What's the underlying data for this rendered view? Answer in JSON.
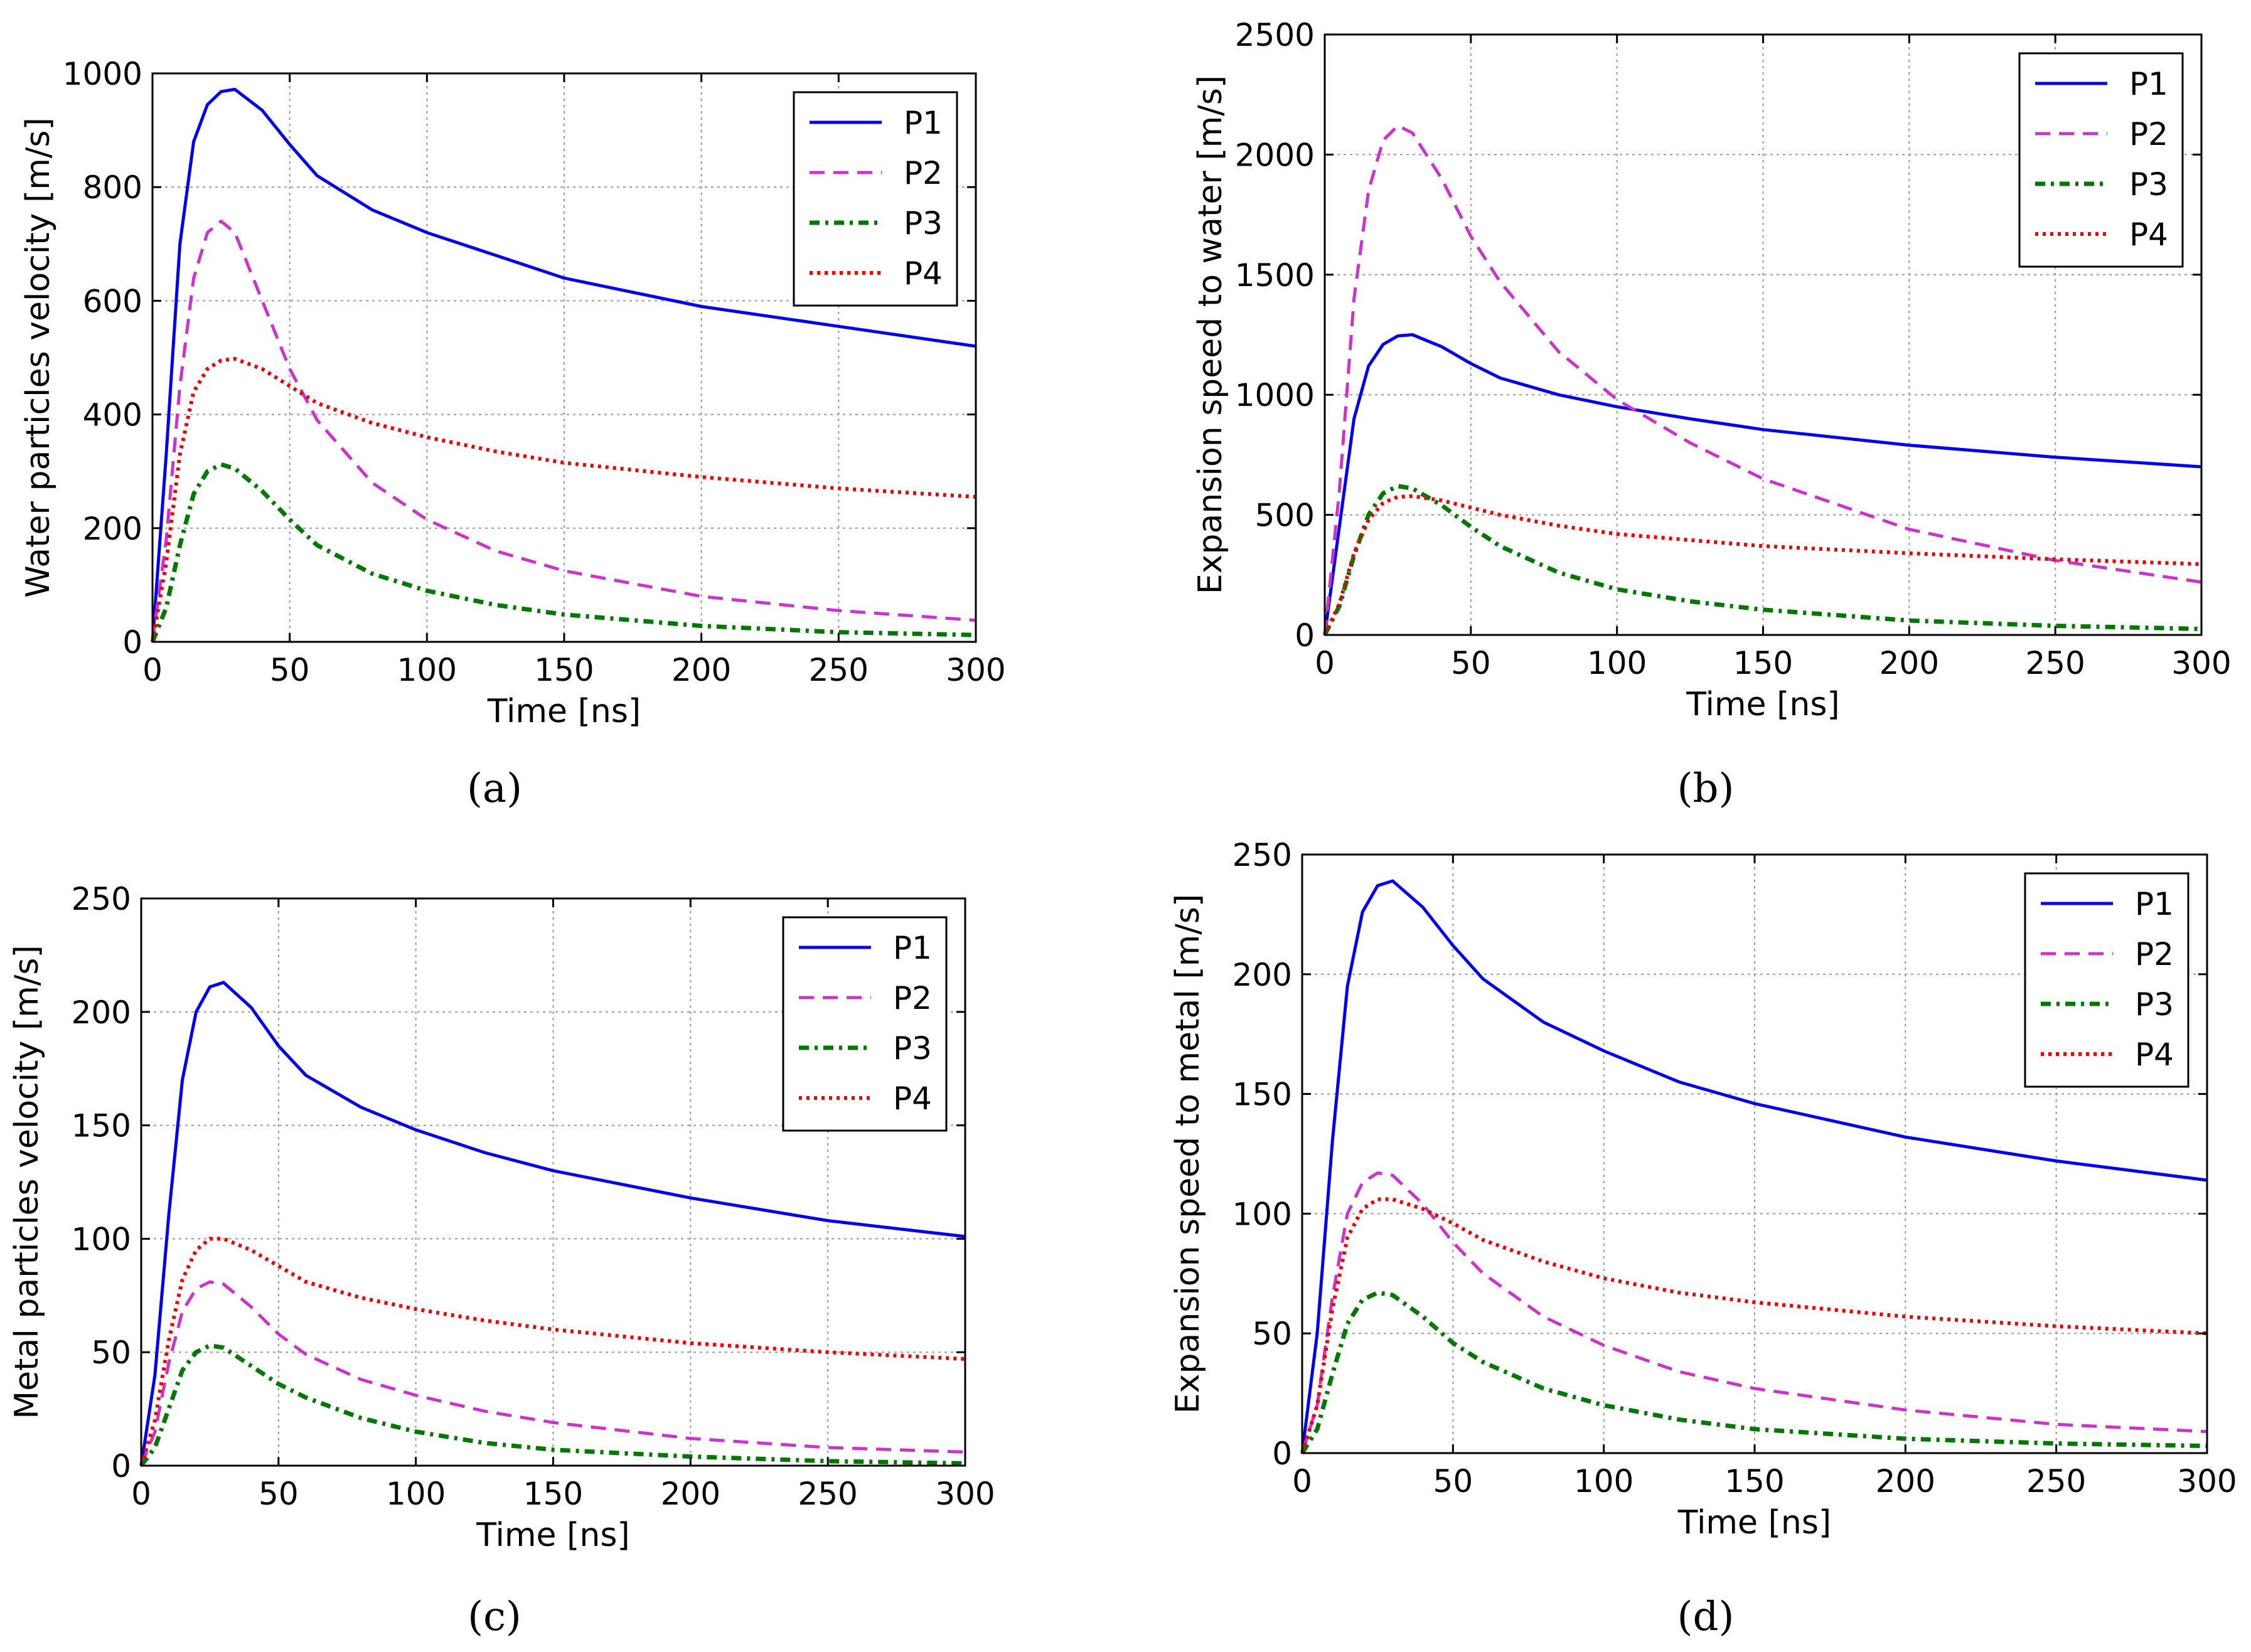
{
  "figure_labels": [
    "(a)",
    "(b)",
    "(c)",
    "(d)"
  ],
  "chart_data": [
    {
      "id": "a",
      "type": "line",
      "title": "",
      "caption": "(a)",
      "xlabel": "Time [ns]",
      "ylabel": "Water particles velocity [m/s]",
      "xlim": [
        0,
        300
      ],
      "ylim": [
        0,
        1000
      ],
      "xticks": [
        0,
        50,
        100,
        150,
        200,
        250,
        300
      ],
      "yticks": [
        0,
        200,
        400,
        600,
        800,
        1000
      ],
      "grid": true,
      "legend_position": "top-right",
      "series": [
        {
          "name": "P1",
          "style": "solid",
          "color": "#0000ee",
          "x": [
            0,
            5,
            10,
            15,
            20,
            25,
            30,
            40,
            50,
            60,
            80,
            100,
            125,
            150,
            200,
            250,
            300
          ],
          "y": [
            0,
            330,
            700,
            880,
            945,
            968,
            972,
            935,
            875,
            820,
            760,
            720,
            680,
            640,
            590,
            555,
            520
          ]
        },
        {
          "name": "P2",
          "style": "dashed",
          "color": "#cc33cc",
          "x": [
            0,
            5,
            10,
            15,
            20,
            25,
            30,
            40,
            50,
            60,
            80,
            100,
            125,
            150,
            200,
            250,
            300
          ],
          "y": [
            0,
            180,
            450,
            640,
            720,
            740,
            720,
            600,
            480,
            390,
            280,
            215,
            160,
            125,
            80,
            55,
            38
          ]
        },
        {
          "name": "P3",
          "style": "dashdot",
          "color": "#007700",
          "x": [
            0,
            5,
            10,
            15,
            20,
            25,
            30,
            40,
            50,
            60,
            80,
            100,
            125,
            150,
            200,
            250,
            300
          ],
          "y": [
            0,
            60,
            170,
            260,
            300,
            312,
            305,
            265,
            215,
            170,
            120,
            90,
            65,
            48,
            28,
            17,
            12
          ]
        },
        {
          "name": "P4",
          "style": "dotted",
          "color": "#ee0000",
          "x": [
            0,
            5,
            10,
            15,
            20,
            25,
            30,
            40,
            50,
            60,
            80,
            100,
            125,
            150,
            200,
            250,
            300
          ],
          "y": [
            0,
            140,
            330,
            440,
            480,
            495,
            498,
            480,
            450,
            420,
            385,
            360,
            335,
            315,
            290,
            270,
            255
          ]
        }
      ]
    },
    {
      "id": "b",
      "type": "line",
      "title": "",
      "caption": "(b)",
      "xlabel": "Time [ns]",
      "ylabel": "Expansion speed to water [m/s]",
      "xlim": [
        0,
        300
      ],
      "ylim": [
        0,
        2500
      ],
      "xticks": [
        0,
        50,
        100,
        150,
        200,
        250,
        300
      ],
      "yticks": [
        0,
        500,
        1000,
        1500,
        2000,
        2500
      ],
      "grid": true,
      "legend_position": "top-right",
      "series": [
        {
          "name": "P1",
          "style": "solid",
          "color": "#0000ee",
          "x": [
            0,
            5,
            10,
            15,
            20,
            25,
            30,
            40,
            50,
            60,
            80,
            100,
            125,
            150,
            200,
            250,
            300
          ],
          "y": [
            0,
            450,
            900,
            1120,
            1210,
            1245,
            1250,
            1200,
            1130,
            1070,
            1000,
            950,
            900,
            855,
            790,
            740,
            700
          ]
        },
        {
          "name": "P2",
          "style": "dashed",
          "color": "#cc33cc",
          "x": [
            0,
            5,
            10,
            15,
            20,
            25,
            30,
            40,
            50,
            60,
            80,
            100,
            125,
            150,
            200,
            250,
            300
          ],
          "y": [
            0,
            600,
            1400,
            1850,
            2060,
            2120,
            2090,
            1900,
            1660,
            1470,
            1180,
            980,
            800,
            650,
            440,
            310,
            220
          ]
        },
        {
          "name": "P3",
          "style": "dashdot",
          "color": "#007700",
          "x": [
            0,
            5,
            10,
            15,
            20,
            25,
            30,
            40,
            50,
            60,
            80,
            100,
            125,
            150,
            200,
            250,
            300
          ],
          "y": [
            0,
            120,
            330,
            500,
            590,
            620,
            610,
            540,
            450,
            370,
            260,
            190,
            140,
            105,
            60,
            38,
            25
          ]
        },
        {
          "name": "P4",
          "style": "dotted",
          "color": "#ee0000",
          "x": [
            0,
            5,
            10,
            15,
            20,
            25,
            30,
            40,
            50,
            60,
            80,
            100,
            125,
            150,
            200,
            250,
            300
          ],
          "y": [
            0,
            130,
            340,
            480,
            550,
            575,
            578,
            560,
            530,
            500,
            455,
            420,
            395,
            370,
            340,
            315,
            295
          ]
        }
      ]
    },
    {
      "id": "c",
      "type": "line",
      "title": "",
      "caption": "(c)",
      "xlabel": "Time [ns]",
      "ylabel": "Metal particles velocity [m/s]",
      "xlim": [
        0,
        300
      ],
      "ylim": [
        0,
        250
      ],
      "xticks": [
        0,
        50,
        100,
        150,
        200,
        250,
        300
      ],
      "yticks": [
        0,
        50,
        100,
        150,
        200,
        250
      ],
      "grid": true,
      "legend_position": "top-right",
      "series": [
        {
          "name": "P1",
          "style": "solid",
          "color": "#0000ee",
          "x": [
            0,
            5,
            10,
            15,
            20,
            25,
            30,
            40,
            50,
            60,
            80,
            100,
            125,
            150,
            200,
            250,
            300
          ],
          "y": [
            0,
            40,
            110,
            170,
            200,
            211,
            213,
            202,
            185,
            172,
            158,
            148,
            138,
            130,
            118,
            108,
            101
          ]
        },
        {
          "name": "P2",
          "style": "dashed",
          "color": "#cc33cc",
          "x": [
            0,
            5,
            10,
            15,
            20,
            25,
            30,
            40,
            50,
            60,
            80,
            100,
            125,
            150,
            200,
            250,
            300
          ],
          "y": [
            0,
            15,
            45,
            68,
            78,
            81,
            80,
            70,
            58,
            49,
            38,
            31,
            24,
            19,
            12,
            8,
            6
          ]
        },
        {
          "name": "P3",
          "style": "dashdot",
          "color": "#007700",
          "x": [
            0,
            5,
            10,
            15,
            20,
            25,
            30,
            40,
            50,
            60,
            80,
            100,
            125,
            150,
            200,
            250,
            300
          ],
          "y": [
            0,
            8,
            25,
            42,
            50,
            53,
            52,
            44,
            36,
            30,
            21,
            15,
            10,
            7,
            4,
            2,
            1
          ]
        },
        {
          "name": "P4",
          "style": "dotted",
          "color": "#ee0000",
          "x": [
            0,
            5,
            10,
            15,
            20,
            25,
            30,
            40,
            50,
            60,
            80,
            100,
            125,
            150,
            200,
            250,
            300
          ],
          "y": [
            0,
            20,
            55,
            82,
            95,
            100,
            100,
            95,
            88,
            81,
            74,
            69,
            64,
            60,
            54,
            50,
            47
          ]
        }
      ]
    },
    {
      "id": "d",
      "type": "line",
      "title": "",
      "caption": "(d)",
      "xlabel": "Time [ns]",
      "ylabel": "Expansion speed to metal [m/s]",
      "xlim": [
        0,
        300
      ],
      "ylim": [
        0,
        250
      ],
      "xticks": [
        0,
        50,
        100,
        150,
        200,
        250,
        300
      ],
      "yticks": [
        0,
        50,
        100,
        150,
        200,
        250
      ],
      "grid": true,
      "legend_position": "top-right",
      "series": [
        {
          "name": "P1",
          "style": "solid",
          "color": "#0000ee",
          "x": [
            0,
            5,
            10,
            15,
            20,
            25,
            30,
            40,
            50,
            60,
            80,
            100,
            125,
            150,
            200,
            250,
            300
          ],
          "y": [
            0,
            50,
            130,
            195,
            226,
            237,
            239,
            228,
            212,
            198,
            180,
            168,
            155,
            146,
            132,
            122,
            114
          ]
        },
        {
          "name": "P2",
          "style": "dashed",
          "color": "#cc33cc",
          "x": [
            0,
            5,
            10,
            15,
            20,
            25,
            30,
            40,
            50,
            60,
            80,
            100,
            125,
            150,
            200,
            250,
            300
          ],
          "y": [
            0,
            20,
            65,
            100,
            113,
            117,
            116,
            104,
            88,
            75,
            57,
            45,
            34,
            27,
            18,
            12,
            9
          ]
        },
        {
          "name": "P3",
          "style": "dashdot",
          "color": "#007700",
          "x": [
            0,
            5,
            10,
            15,
            20,
            25,
            30,
            40,
            50,
            60,
            80,
            100,
            125,
            150,
            200,
            250,
            300
          ],
          "y": [
            0,
            10,
            33,
            54,
            64,
            67,
            66,
            57,
            46,
            38,
            27,
            20,
            14,
            10,
            6,
            4,
            3
          ]
        },
        {
          "name": "P4",
          "style": "dotted",
          "color": "#ee0000",
          "x": [
            0,
            5,
            10,
            15,
            20,
            25,
            30,
            40,
            50,
            60,
            80,
            100,
            125,
            150,
            200,
            250,
            300
          ],
          "y": [
            0,
            20,
            60,
            90,
            102,
            106,
            106,
            102,
            96,
            89,
            80,
            73,
            67,
            63,
            57,
            53,
            50
          ]
        }
      ]
    }
  ]
}
